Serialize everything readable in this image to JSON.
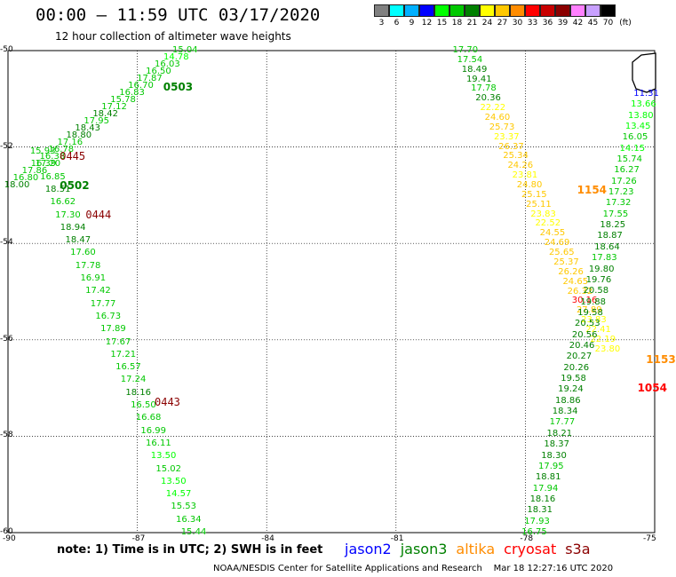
{
  "title": "00:00 – 11:59 UTC 03/17/2020",
  "subtitle": "12 hour collection of altimeter wave heights",
  "legend": {
    "unit": "(ft)",
    "labels": [
      "3",
      "6",
      "9",
      "12",
      "15",
      "18",
      "21",
      "24",
      "27",
      "30",
      "33",
      "36",
      "39",
      "42",
      "45",
      "70"
    ],
    "colors": [
      "#808080",
      "#00ffff",
      "#00b0ff",
      "#0000ff",
      "#00ff00",
      "#00c800",
      "#008000",
      "#ffff00",
      "#ffc800",
      "#ff8c00",
      "#ff0000",
      "#c80000",
      "#8b0000",
      "#ff80ff",
      "#c8a0ff",
      "#000000"
    ]
  },
  "axes": {
    "lat_labels": [
      "-50",
      "-52",
      "-54",
      "-56",
      "-58",
      "-60"
    ],
    "lon_labels": [
      "-90",
      "-87",
      "-84",
      "-81",
      "-78",
      "-75"
    ],
    "lat_range": [
      -60,
      -50
    ],
    "lon_range": [
      -90,
      -75
    ]
  },
  "passes": [
    {
      "label": "0503",
      "lon": -86.4,
      "lat": -50.75,
      "color": "#008000"
    },
    {
      "label": "0445",
      "lon": -88.8,
      "lat": -52.2,
      "color": "#8b0000"
    },
    {
      "label": "0502",
      "lon": -88.8,
      "lat": -52.8,
      "color": "#008000"
    },
    {
      "label": "0444",
      "lon": -88.2,
      "lat": -53.4,
      "color": "#8b0000"
    },
    {
      "label": "0443",
      "lon": -86.6,
      "lat": -57.3,
      "color": "#8b0000"
    },
    {
      "label": "1154",
      "lon": -76.8,
      "lat": -52.9,
      "color": "#ff8c00"
    },
    {
      "label": "1153",
      "lon": -75.2,
      "lat": -56.4,
      "color": "#ff8c00"
    },
    {
      "label": "1054",
      "lon": -75.4,
      "lat": -57.0,
      "color": "#ff0000"
    }
  ],
  "tracks": [
    {
      "name": "track-0503",
      "start": [
        -85.9,
        -50.0
      ],
      "end": [
        -89.8,
        -52.8
      ],
      "values": [
        {
          "v": "15.04",
          "c": "#00c800"
        },
        {
          "v": "14.78",
          "c": "#00ff00"
        },
        {
          "v": "16.03",
          "c": "#00c800"
        },
        {
          "v": "16.50",
          "c": "#00c800"
        },
        {
          "v": "17.87",
          "c": "#00c800"
        },
        {
          "v": "16.70",
          "c": "#00c800"
        },
        {
          "v": "16.83",
          "c": "#00c800"
        },
        {
          "v": "15.78",
          "c": "#00c800"
        },
        {
          "v": "17.12",
          "c": "#00c800"
        },
        {
          "v": "18.42",
          "c": "#008000"
        },
        {
          "v": "17.95",
          "c": "#00c800"
        },
        {
          "v": "18.43",
          "c": "#008000"
        },
        {
          "v": "18.80",
          "c": "#008000"
        },
        {
          "v": "17.16",
          "c": "#00c800"
        },
        {
          "v": "16.78",
          "c": "#00c800"
        },
        {
          "v": "16.38",
          "c": "#00c800"
        },
        {
          "v": "16.39",
          "c": "#00c800"
        },
        {
          "v": "17.86",
          "c": "#00c800"
        },
        {
          "v": "16.80",
          "c": "#00c800"
        },
        {
          "v": "18.00",
          "c": "#008000"
        }
      ]
    },
    {
      "name": "track-0444",
      "start": [
        -89.2,
        -52.1
      ],
      "end": [
        -85.7,
        -60.0
      ],
      "values": [
        {
          "v": "15.93",
          "c": "#00c800"
        },
        {
          "v": "17.20",
          "c": "#00c800"
        },
        {
          "v": "16.85",
          "c": "#00c800"
        },
        {
          "v": "18.51",
          "c": "#008000"
        },
        {
          "v": "16.62",
          "c": "#00c800"
        },
        {
          "v": "17.30",
          "c": "#00c800"
        },
        {
          "v": "18.94",
          "c": "#008000"
        },
        {
          "v": "18.47",
          "c": "#008000"
        },
        {
          "v": "17.60",
          "c": "#00c800"
        },
        {
          "v": "17.78",
          "c": "#00c800"
        },
        {
          "v": "16.91",
          "c": "#00c800"
        },
        {
          "v": "17.42",
          "c": "#00c800"
        },
        {
          "v": "17.77",
          "c": "#00c800"
        },
        {
          "v": "16.73",
          "c": "#00c800"
        },
        {
          "v": "17.89",
          "c": "#00c800"
        },
        {
          "v": "17.67",
          "c": "#00c800"
        },
        {
          "v": "17.21",
          "c": "#00c800"
        },
        {
          "v": "16.57",
          "c": "#00c800"
        },
        {
          "v": "17.24",
          "c": "#00c800"
        },
        {
          "v": "18.16",
          "c": "#008000"
        },
        {
          "v": "16.50",
          "c": "#00c800"
        },
        {
          "v": "16.68",
          "c": "#00c800"
        },
        {
          "v": "16.99",
          "c": "#00c800"
        },
        {
          "v": "16.11",
          "c": "#00c800"
        },
        {
          "v": "13.50",
          "c": "#00ff00"
        },
        {
          "v": "15.02",
          "c": "#00c800"
        },
        {
          "v": "13.50",
          "c": "#00ff00"
        },
        {
          "v": "14.57",
          "c": "#00ff00"
        },
        {
          "v": "15.53",
          "c": "#00c800"
        },
        {
          "v": "16.34",
          "c": "#00c800"
        },
        {
          "v": "15.44",
          "c": "#00c800"
        }
      ]
    },
    {
      "name": "track-1154",
      "start": [
        -79.4,
        -50.0
      ],
      "end": [
        -76.1,
        -56.2
      ],
      "values": [
        {
          "v": "17.70",
          "c": "#00c800"
        },
        {
          "v": "17.54",
          "c": "#00c800"
        },
        {
          "v": "18.49",
          "c": "#008000"
        },
        {
          "v": "19.41",
          "c": "#008000"
        },
        {
          "v": "17.78",
          "c": "#00c800"
        },
        {
          "v": "20.36",
          "c": "#008000"
        },
        {
          "v": "22.22",
          "c": "#ffff00"
        },
        {
          "v": "24.60",
          "c": "#ffc800"
        },
        {
          "v": "25.73",
          "c": "#ffc800"
        },
        {
          "v": "23.37",
          "c": "#ffff00"
        },
        {
          "v": "26.37",
          "c": "#ffc800"
        },
        {
          "v": "25.34",
          "c": "#ffc800"
        },
        {
          "v": "24.26",
          "c": "#ffc800"
        },
        {
          "v": "23.81",
          "c": "#ffff00"
        },
        {
          "v": "24.80",
          "c": "#ffc800"
        },
        {
          "v": "25.15",
          "c": "#ffc800"
        },
        {
          "v": "25.11",
          "c": "#ffc800"
        },
        {
          "v": "23.83",
          "c": "#ffff00"
        },
        {
          "v": "22.52",
          "c": "#ffff00"
        },
        {
          "v": "24.55",
          "c": "#ffc800"
        },
        {
          "v": "24.69",
          "c": "#ffc800"
        },
        {
          "v": "25.65",
          "c": "#ffc800"
        },
        {
          "v": "25.37",
          "c": "#ffc800"
        },
        {
          "v": "26.26",
          "c": "#ffc800"
        },
        {
          "v": "24.65",
          "c": "#ffc800"
        },
        {
          "v": "26.32",
          "c": "#ffc800"
        },
        {
          "v": "30.16",
          "c": "#ff0000"
        },
        {
          "v": "27.89",
          "c": "#ffc800"
        },
        {
          "v": "23.83",
          "c": "#ffff00"
        },
        {
          "v": "22.41",
          "c": "#ffff00"
        },
        {
          "v": "22.19",
          "c": "#ffff00"
        },
        {
          "v": "23.80",
          "c": "#ffff00"
        }
      ]
    },
    {
      "name": "track-1153",
      "start": [
        -75.2,
        -50.9
      ],
      "end": [
        -77.8,
        -60.0
      ],
      "values": [
        {
          "v": "11.31",
          "c": "#0000ff"
        },
        {
          "v": "13.66",
          "c": "#00ff00"
        },
        {
          "v": "13.80",
          "c": "#00ff00"
        },
        {
          "v": "13.45",
          "c": "#00ff00"
        },
        {
          "v": "16.05",
          "c": "#00c800"
        },
        {
          "v": "14.15",
          "c": "#00ff00"
        },
        {
          "v": "15.74",
          "c": "#00c800"
        },
        {
          "v": "16.27",
          "c": "#00c800"
        },
        {
          "v": "17.26",
          "c": "#00c800"
        },
        {
          "v": "17.23",
          "c": "#00c800"
        },
        {
          "v": "17.32",
          "c": "#00c800"
        },
        {
          "v": "17.55",
          "c": "#00c800"
        },
        {
          "v": "18.25",
          "c": "#008000"
        },
        {
          "v": "18.87",
          "c": "#008000"
        },
        {
          "v": "18.64",
          "c": "#008000"
        },
        {
          "v": "17.83",
          "c": "#00c800"
        },
        {
          "v": "19.80",
          "c": "#008000"
        },
        {
          "v": "19.76",
          "c": "#008000"
        },
        {
          "v": "20.58",
          "c": "#008000"
        },
        {
          "v": "19.88",
          "c": "#008000"
        },
        {
          "v": "19.58",
          "c": "#008000"
        },
        {
          "v": "20.53",
          "c": "#008000"
        },
        {
          "v": "20.56",
          "c": "#008000"
        },
        {
          "v": "20.46",
          "c": "#008000"
        },
        {
          "v": "20.27",
          "c": "#008000"
        },
        {
          "v": "20.26",
          "c": "#008000"
        },
        {
          "v": "19.58",
          "c": "#008000"
        },
        {
          "v": "19.24",
          "c": "#008000"
        },
        {
          "v": "18.86",
          "c": "#008000"
        },
        {
          "v": "18.34",
          "c": "#008000"
        },
        {
          "v": "17.77",
          "c": "#00c800"
        },
        {
          "v": "18.21",
          "c": "#008000"
        },
        {
          "v": "18.37",
          "c": "#008000"
        },
        {
          "v": "18.30",
          "c": "#008000"
        },
        {
          "v": "17.95",
          "c": "#00c800"
        },
        {
          "v": "18.81",
          "c": "#008000"
        },
        {
          "v": "17.94",
          "c": "#00c800"
        },
        {
          "v": "18.16",
          "c": "#008000"
        },
        {
          "v": "18.31",
          "c": "#008000"
        },
        {
          "v": "17.93",
          "c": "#00c800"
        },
        {
          "v": "16.75",
          "c": "#00c800"
        }
      ]
    }
  ],
  "note": "note: 1) Time is in UTC; 2) SWH is in feet",
  "satellites": [
    {
      "name": "jason2",
      "color": "#0000ff"
    },
    {
      "name": "jason3",
      "color": "#008000"
    },
    {
      "name": "altika",
      "color": "#ff8c00"
    },
    {
      "name": "cryosat",
      "color": "#ff0000"
    },
    {
      "name": "s3a",
      "color": "#8b0000"
    }
  ],
  "footer": "NOAA/NESDIS Center for Satellite Applications and Research    Mar 18 12:27:16 UTC 2020"
}
